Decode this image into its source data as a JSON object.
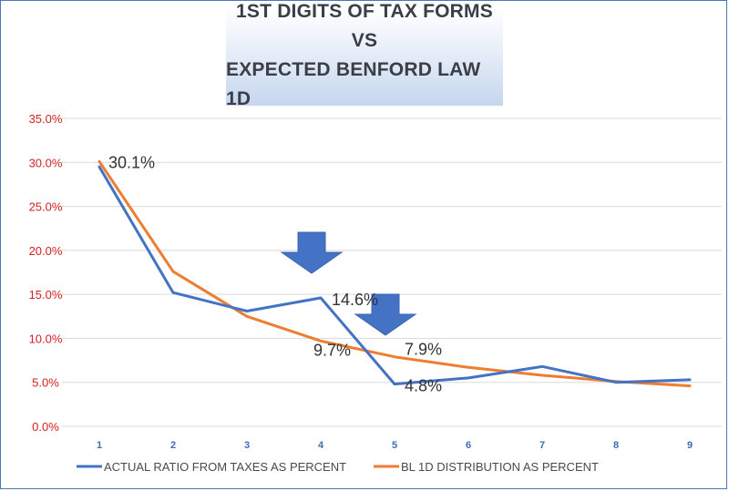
{
  "title": {
    "line1": "1ST DIGITS OF TAX FORMS",
    "line2": "VS",
    "line3": "EXPECTED BENFORD LAW 1D"
  },
  "chart_data": {
    "type": "line",
    "x": [
      1,
      2,
      3,
      4,
      5,
      6,
      7,
      8,
      9
    ],
    "ylim": [
      0,
      35
    ],
    "yticks": [
      "0.0%",
      "5.0%",
      "10.0%",
      "15.0%",
      "20.0%",
      "25.0%",
      "30.0%",
      "35.0%"
    ],
    "grid": true,
    "legend": "bottom",
    "series": [
      {
        "name": "ACTUAL RATIO FROM TAXES AS PERCENT",
        "color": "#4472c4",
        "values": [
          29.5,
          15.2,
          13.1,
          14.6,
          4.8,
          5.5,
          6.8,
          5.0,
          5.3
        ]
      },
      {
        "name": "BL 1D DISTRIBUTION AS PERCENT",
        "color": "#ed7d31",
        "values": [
          30.1,
          17.6,
          12.5,
          9.7,
          7.9,
          6.7,
          5.8,
          5.1,
          4.6
        ]
      }
    ],
    "data_labels": [
      {
        "text": "30.1%",
        "x": 1,
        "series": 1
      },
      {
        "text": "14.6%",
        "x": 4,
        "series": 0
      },
      {
        "text": "9.7%",
        "x": 4,
        "series": 1
      },
      {
        "text": "7.9%",
        "x": 5,
        "series": 1
      },
      {
        "text": "4.8%",
        "x": 5,
        "series": 0
      }
    ],
    "annotations": [
      {
        "type": "down-arrow",
        "x": 4,
        "color": "#4472c4"
      },
      {
        "type": "down-arrow",
        "x": 5,
        "color": "#4472c4"
      }
    ],
    "grid_color": "#d9d9d9"
  }
}
